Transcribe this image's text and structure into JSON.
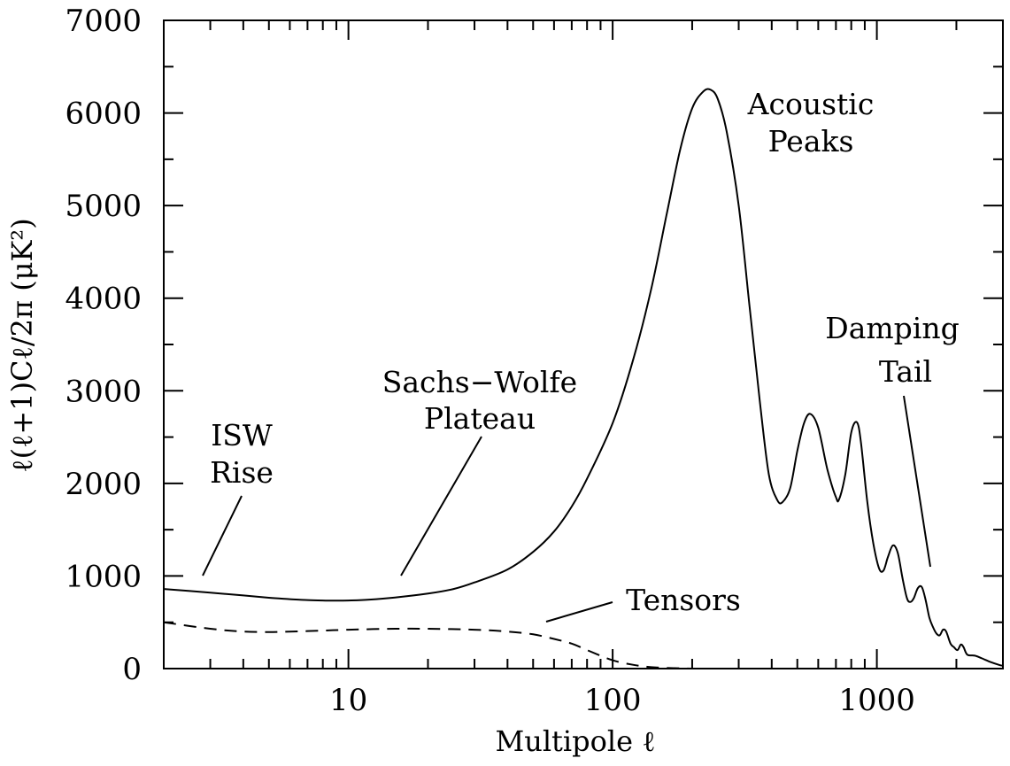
{
  "chart_data": {
    "type": "line",
    "xscale": "log",
    "xlim": [
      2,
      3000
    ],
    "ylim": [
      0,
      7000
    ],
    "xlabel": "Multipole ℓ",
    "ylabel": "ℓ(ℓ+1)Cℓ/2π (μK²)",
    "x_ticks": [
      10,
      100,
      1000
    ],
    "x_tick_labels": [
      "10",
      "100",
      "1000"
    ],
    "y_ticks": [
      0,
      1000,
      2000,
      3000,
      4000,
      5000,
      6000,
      7000
    ],
    "y_tick_labels": [
      "0",
      "1000",
      "2000",
      "3000",
      "4000",
      "5000",
      "6000",
      "7000"
    ],
    "grid": false,
    "series": [
      {
        "style": "solid",
        "points": [
          [
            2,
            860
          ],
          [
            3,
            820
          ],
          [
            4,
            790
          ],
          [
            5,
            765
          ],
          [
            6,
            750
          ],
          [
            7,
            740
          ],
          [
            8,
            735
          ],
          [
            9,
            733
          ],
          [
            10,
            735
          ],
          [
            12,
            745
          ],
          [
            15,
            768
          ],
          [
            20,
            810
          ],
          [
            25,
            860
          ],
          [
            30,
            930
          ],
          [
            40,
            1070
          ],
          [
            50,
            1260
          ],
          [
            60,
            1480
          ],
          [
            70,
            1750
          ],
          [
            80,
            2050
          ],
          [
            100,
            2650
          ],
          [
            120,
            3350
          ],
          [
            140,
            4100
          ],
          [
            160,
            4900
          ],
          [
            180,
            5600
          ],
          [
            200,
            6050
          ],
          [
            220,
            6230
          ],
          [
            235,
            6250
          ],
          [
            250,
            6150
          ],
          [
            270,
            5800
          ],
          [
            300,
            5000
          ],
          [
            330,
            3900
          ],
          [
            360,
            2900
          ],
          [
            390,
            2100
          ],
          [
            420,
            1820
          ],
          [
            440,
            1800
          ],
          [
            470,
            1950
          ],
          [
            500,
            2350
          ],
          [
            530,
            2650
          ],
          [
            560,
            2750
          ],
          [
            600,
            2600
          ],
          [
            650,
            2150
          ],
          [
            700,
            1850
          ],
          [
            720,
            1830
          ],
          [
            760,
            2100
          ],
          [
            800,
            2550
          ],
          [
            840,
            2660
          ],
          [
            870,
            2450
          ],
          [
            920,
            1800
          ],
          [
            970,
            1350
          ],
          [
            1020,
            1080
          ],
          [
            1060,
            1060
          ],
          [
            1100,
            1200
          ],
          [
            1150,
            1330
          ],
          [
            1200,
            1250
          ],
          [
            1250,
            980
          ],
          [
            1300,
            760
          ],
          [
            1340,
            720
          ],
          [
            1380,
            760
          ],
          [
            1430,
            870
          ],
          [
            1480,
            880
          ],
          [
            1530,
            740
          ],
          [
            1580,
            550
          ],
          [
            1630,
            450
          ],
          [
            1680,
            380
          ],
          [
            1730,
            360
          ],
          [
            1780,
            420
          ],
          [
            1830,
            400
          ],
          [
            1900,
            270
          ],
          [
            1960,
            230
          ],
          [
            2020,
            200
          ],
          [
            2080,
            260
          ],
          [
            2130,
            230
          ],
          [
            2200,
            150
          ],
          [
            2350,
            140
          ],
          [
            2500,
            110
          ],
          [
            2700,
            70
          ],
          [
            2900,
            40
          ],
          [
            3000,
            30
          ]
        ]
      },
      {
        "style": "dashed",
        "points": [
          [
            2,
            500
          ],
          [
            3,
            430
          ],
          [
            4,
            400
          ],
          [
            5,
            395
          ],
          [
            6,
            400
          ],
          [
            8,
            410
          ],
          [
            10,
            420
          ],
          [
            15,
            430
          ],
          [
            20,
            430
          ],
          [
            30,
            420
          ],
          [
            40,
            400
          ],
          [
            50,
            370
          ],
          [
            60,
            320
          ],
          [
            70,
            270
          ],
          [
            80,
            200
          ],
          [
            100,
            90
          ],
          [
            120,
            40
          ],
          [
            140,
            15
          ],
          [
            170,
            5
          ],
          [
            200,
            0
          ],
          [
            250,
            0
          ],
          [
            280,
            0
          ]
        ]
      }
    ],
    "annotations": [
      {
        "lines": [
          "Acoustic",
          "Peaks"
        ]
      },
      {
        "lines": [
          "Damping",
          "Tail"
        ]
      },
      {
        "lines": [
          "Sachs−Wolfe",
          "Plateau"
        ]
      },
      {
        "lines": [
          "ISW",
          "Rise"
        ]
      },
      {
        "lines": [
          "Tensors"
        ]
      }
    ]
  }
}
